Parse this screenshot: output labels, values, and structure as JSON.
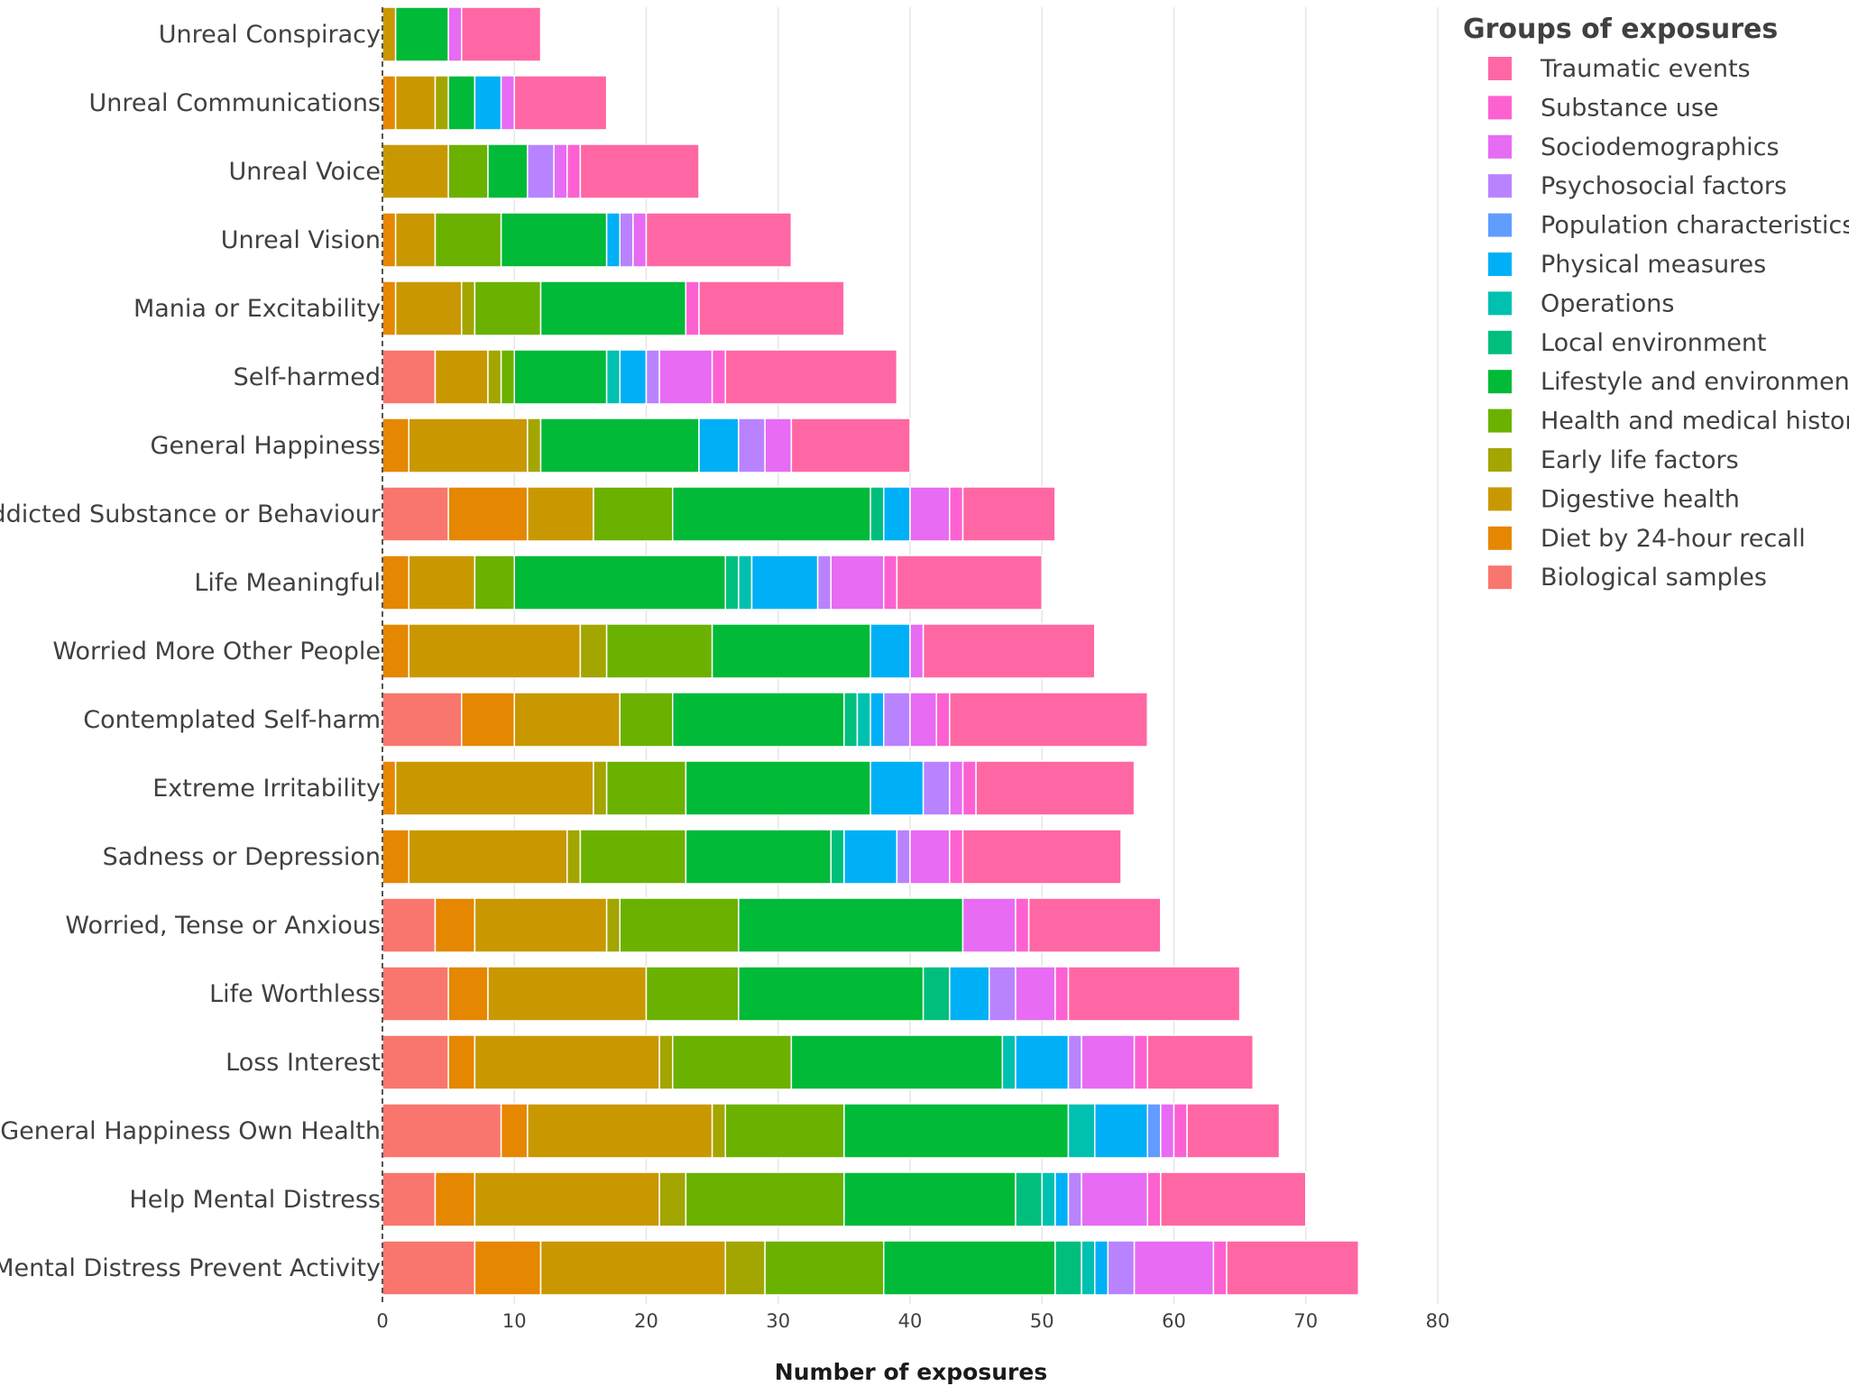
{
  "chart_data": {
    "type": "bar",
    "orientation": "horizontal",
    "stacked": true,
    "xlabel": "Number of exposures",
    "ylabel": "",
    "xlim": [
      0,
      80
    ],
    "xticks": [
      0,
      10,
      20,
      30,
      40,
      50,
      60,
      70,
      80
    ],
    "grid": true,
    "legend_title": "Groups of exposures",
    "legend_position": "top-right",
    "categories": [
      "Unreal Conspiracy",
      "Unreal Communications",
      "Unreal Voice",
      "Unreal Vision",
      "Mania or Excitability",
      "Self-harmed",
      "General Happiness",
      "Addicted Substance or Behaviour",
      "Life Meaningful",
      "Worried More Other People",
      "Contemplated Self-harm",
      "Extreme Irritability",
      "Sadness or Depression",
      "Worried, Tense or Anxious",
      "Life Worthless",
      "Loss Interest",
      "General Happiness Own Health",
      "Help Mental Distress",
      "Mental Distress Prevent Activity"
    ],
    "series": [
      {
        "name": "Biological samples",
        "color": "#F8766D",
        "values": [
          0,
          0,
          0,
          0,
          0,
          4,
          0,
          5,
          0,
          0,
          6,
          0,
          0,
          4,
          5,
          5,
          9,
          4,
          7
        ]
      },
      {
        "name": "Diet by 24-hour recall",
        "color": "#E58700",
        "values": [
          0,
          1,
          0,
          1,
          1,
          0,
          2,
          6,
          2,
          2,
          4,
          1,
          2,
          3,
          3,
          2,
          2,
          3,
          5
        ]
      },
      {
        "name": "Digestive health",
        "color": "#C99800",
        "values": [
          1,
          3,
          5,
          3,
          5,
          4,
          9,
          5,
          5,
          13,
          8,
          15,
          12,
          10,
          12,
          14,
          14,
          14,
          14
        ]
      },
      {
        "name": "Early life factors",
        "color": "#A3A500",
        "values": [
          0,
          1,
          0,
          0,
          1,
          1,
          1,
          0,
          0,
          2,
          0,
          1,
          1,
          1,
          0,
          1,
          1,
          2,
          3
        ]
      },
      {
        "name": "Health and medical history",
        "color": "#6BB100",
        "values": [
          0,
          0,
          3,
          5,
          5,
          1,
          0,
          6,
          3,
          8,
          4,
          6,
          8,
          9,
          7,
          9,
          9,
          12,
          9
        ]
      },
      {
        "name": "Lifestyle and environment",
        "color": "#00BA38",
        "values": [
          4,
          2,
          3,
          8,
          11,
          7,
          12,
          15,
          16,
          12,
          13,
          14,
          11,
          17,
          14,
          16,
          17,
          13,
          13
        ]
      },
      {
        "name": "Local environment",
        "color": "#00BF7D",
        "values": [
          0,
          0,
          0,
          0,
          0,
          0,
          0,
          1,
          1,
          0,
          1,
          0,
          1,
          0,
          2,
          0,
          0,
          2,
          2
        ]
      },
      {
        "name": "Operations",
        "color": "#00C0AF",
        "values": [
          0,
          0,
          0,
          0,
          0,
          1,
          0,
          0,
          1,
          0,
          1,
          0,
          0,
          0,
          0,
          1,
          2,
          1,
          1
        ]
      },
      {
        "name": "Physical measures",
        "color": "#00B0F6",
        "values": [
          0,
          2,
          0,
          1,
          0,
          2,
          3,
          2,
          5,
          3,
          1,
          4,
          4,
          0,
          3,
          4,
          4,
          1,
          1
        ]
      },
      {
        "name": "Population characteristics",
        "color": "#619CFF",
        "values": [
          0,
          0,
          0,
          0,
          0,
          0,
          0,
          0,
          0,
          0,
          0,
          0,
          0,
          0,
          0,
          0,
          1,
          0,
          0
        ]
      },
      {
        "name": "Psychosocial factors",
        "color": "#B983FF",
        "values": [
          0,
          0,
          2,
          1,
          0,
          1,
          2,
          0,
          1,
          0,
          2,
          2,
          1,
          0,
          2,
          1,
          0,
          1,
          2
        ]
      },
      {
        "name": "Sociodemographics",
        "color": "#E76BF3",
        "values": [
          1,
          1,
          1,
          1,
          0,
          4,
          2,
          3,
          4,
          1,
          2,
          1,
          3,
          4,
          3,
          4,
          1,
          5,
          6
        ]
      },
      {
        "name": "Substance use",
        "color": "#FD61D1",
        "values": [
          0,
          0,
          1,
          0,
          1,
          1,
          0,
          1,
          1,
          0,
          1,
          1,
          1,
          1,
          1,
          1,
          1,
          1,
          1
        ]
      },
      {
        "name": "Traumatic events",
        "color": "#FF67A4",
        "values": [
          6,
          7,
          9,
          11,
          11,
          13,
          9,
          7,
          11,
          13,
          15,
          12,
          12,
          10,
          13,
          8,
          7,
          11,
          10
        ]
      }
    ]
  }
}
